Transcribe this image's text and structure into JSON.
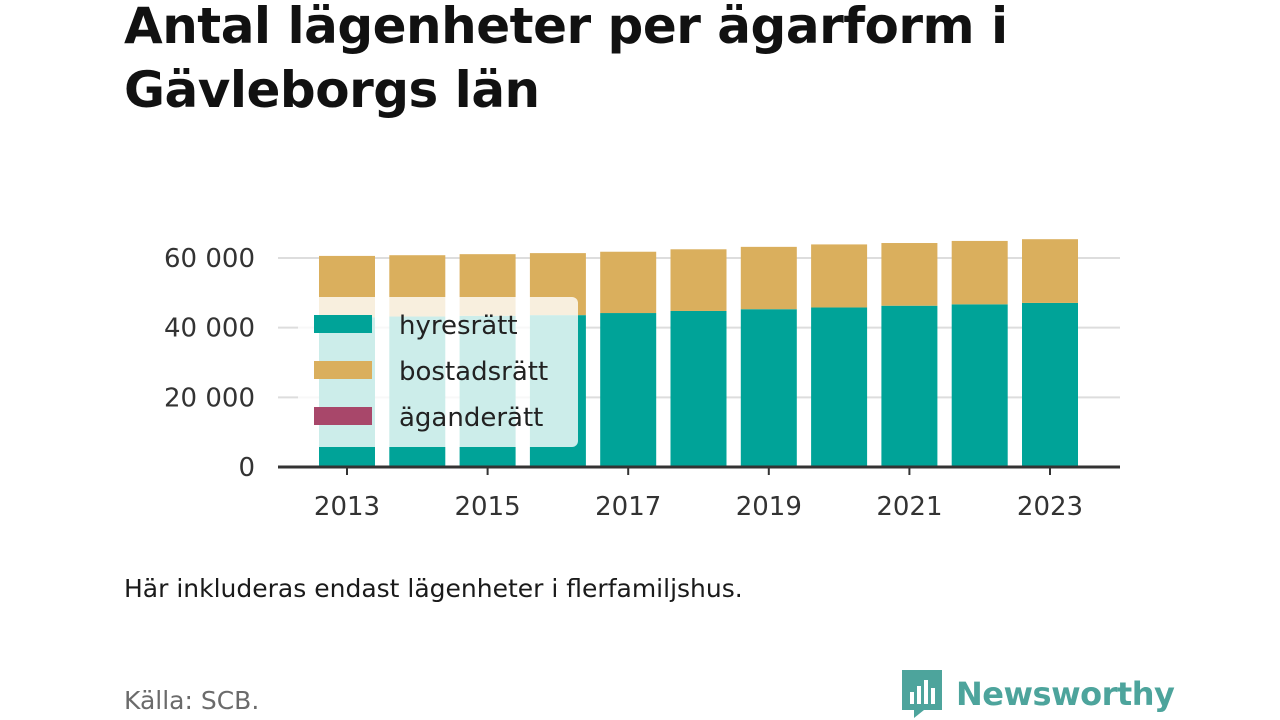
{
  "title": "Antal lägenheter per ägarform i Gävleborgs län",
  "note": "Här inkluderas endast lägenheter i flerfamiljshus.",
  "source": "Källa: SCB.",
  "brand": {
    "name": "Newsworthy",
    "icon": "newsworthy-logo-icon",
    "color": "#4da49c"
  },
  "chart_data": {
    "type": "bar",
    "stacked": true,
    "categories": [
      "2013",
      "2014",
      "2015",
      "2016",
      "2017",
      "2018",
      "2019",
      "2020",
      "2021",
      "2022",
      "2023"
    ],
    "x_tick_labels": [
      "2013",
      "2015",
      "2017",
      "2019",
      "2021",
      "2023"
    ],
    "y_tick_labels": [
      "0",
      "20 000",
      "40 000",
      "60 000"
    ],
    "y_ticks": [
      0,
      20000,
      40000,
      60000
    ],
    "ylim": [
      0,
      60000
    ],
    "grid": true,
    "legend_position": "left",
    "series": [
      {
        "name": "hyresrätt",
        "color": "#00a398",
        "values": [
          43000,
          43200,
          43400,
          43600,
          44200,
          44800,
          45300,
          45800,
          46300,
          46700,
          47100
        ]
      },
      {
        "name": "bostadsrätt",
        "color": "#daaf5d",
        "values": [
          17600,
          17600,
          17700,
          17800,
          17600,
          17700,
          17900,
          18100,
          18000,
          18200,
          18300
        ]
      },
      {
        "name": "äganderätt",
        "color": "#a8476a",
        "values": [
          0,
          0,
          0,
          0,
          0,
          0,
          0,
          0,
          0,
          0,
          0
        ]
      }
    ]
  }
}
